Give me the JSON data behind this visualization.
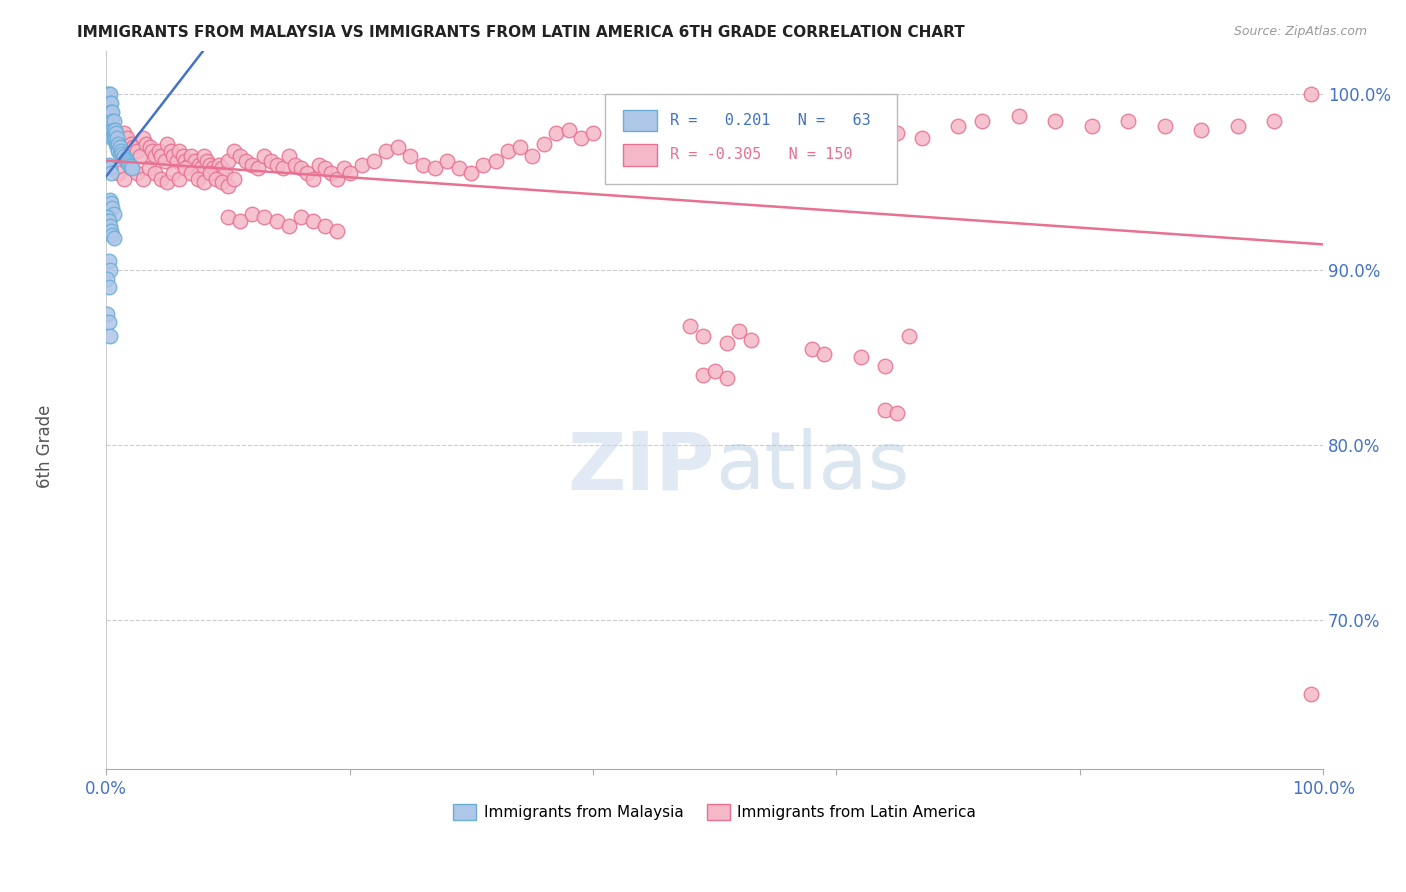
{
  "title": "IMMIGRANTS FROM MALAYSIA VS IMMIGRANTS FROM LATIN AMERICA 6TH GRADE CORRELATION CHART",
  "source": "Source: ZipAtlas.com",
  "ylabel": "6th Grade",
  "xlim": [
    0.0,
    1.0
  ],
  "ylim": [
    0.615,
    1.025
  ],
  "yticks": [
    0.7,
    0.8,
    0.9,
    1.0
  ],
  "ytick_labels": [
    "70.0%",
    "80.0%",
    "90.0%",
    "100.0%"
  ],
  "malaysia_color": "#aec6e8",
  "malaysia_edge": "#6aaed6",
  "latin_color": "#f4b8c8",
  "latin_edge": "#e87090",
  "trendline_malaysia": "#4472c4",
  "trendline_latin": "#e87090",
  "malaysia_x": [
    0.001,
    0.001,
    0.001,
    0.002,
    0.002,
    0.002,
    0.002,
    0.003,
    0.003,
    0.003,
    0.003,
    0.003,
    0.004,
    0.004,
    0.004,
    0.004,
    0.005,
    0.005,
    0.005,
    0.005,
    0.006,
    0.006,
    0.006,
    0.007,
    0.007,
    0.008,
    0.008,
    0.009,
    0.009,
    0.01,
    0.01,
    0.011,
    0.011,
    0.012,
    0.013,
    0.014,
    0.015,
    0.016,
    0.017,
    0.018,
    0.019,
    0.02,
    0.021,
    0.002,
    0.003,
    0.004,
    0.003,
    0.004,
    0.005,
    0.006,
    0.001,
    0.002,
    0.003,
    0.004,
    0.005,
    0.006,
    0.002,
    0.003,
    0.001,
    0.002,
    0.001,
    0.002,
    0.003
  ],
  "malaysia_y": [
    1.0,
    0.99,
    0.98,
    1.0,
    0.995,
    0.99,
    0.985,
    1.0,
    0.995,
    0.99,
    0.985,
    0.98,
    0.995,
    0.99,
    0.985,
    0.98,
    0.99,
    0.985,
    0.98,
    0.975,
    0.985,
    0.98,
    0.975,
    0.98,
    0.975,
    0.978,
    0.972,
    0.975,
    0.97,
    0.972,
    0.968,
    0.97,
    0.966,
    0.968,
    0.966,
    0.964,
    0.965,
    0.963,
    0.962,
    0.961,
    0.96,
    0.959,
    0.958,
    0.96,
    0.958,
    0.955,
    0.94,
    0.938,
    0.935,
    0.932,
    0.93,
    0.928,
    0.925,
    0.922,
    0.92,
    0.918,
    0.905,
    0.9,
    0.895,
    0.89,
    0.875,
    0.87,
    0.862
  ],
  "latin_x": [
    0.003,
    0.005,
    0.008,
    0.01,
    0.012,
    0.015,
    0.017,
    0.02,
    0.022,
    0.025,
    0.028,
    0.03,
    0.033,
    0.036,
    0.038,
    0.04,
    0.043,
    0.045,
    0.048,
    0.05,
    0.053,
    0.055,
    0.058,
    0.06,
    0.063,
    0.065,
    0.068,
    0.07,
    0.073,
    0.076,
    0.078,
    0.08,
    0.083,
    0.085,
    0.088,
    0.09,
    0.093,
    0.095,
    0.098,
    0.1,
    0.105,
    0.11,
    0.115,
    0.12,
    0.125,
    0.13,
    0.135,
    0.14,
    0.145,
    0.15,
    0.155,
    0.16,
    0.165,
    0.17,
    0.175,
    0.18,
    0.185,
    0.19,
    0.195,
    0.2,
    0.21,
    0.22,
    0.23,
    0.24,
    0.25,
    0.26,
    0.27,
    0.28,
    0.29,
    0.3,
    0.31,
    0.32,
    0.33,
    0.34,
    0.35,
    0.36,
    0.37,
    0.38,
    0.39,
    0.4,
    0.42,
    0.44,
    0.46,
    0.48,
    0.5,
    0.52,
    0.54,
    0.56,
    0.58,
    0.6,
    0.63,
    0.65,
    0.67,
    0.7,
    0.72,
    0.75,
    0.78,
    0.81,
    0.84,
    0.87,
    0.9,
    0.93,
    0.96,
    0.99,
    0.01,
    0.015,
    0.02,
    0.025,
    0.03,
    0.035,
    0.04,
    0.045,
    0.05,
    0.055,
    0.06,
    0.065,
    0.07,
    0.075,
    0.08,
    0.085,
    0.09,
    0.095,
    0.1,
    0.105,
    0.1,
    0.11,
    0.12,
    0.13,
    0.14,
    0.15,
    0.16,
    0.17,
    0.18,
    0.19,
    0.48,
    0.49,
    0.51,
    0.52,
    0.53,
    0.58,
    0.59,
    0.62,
    0.64,
    0.66,
    0.49,
    0.5,
    0.51,
    0.64,
    0.65,
    0.99
  ],
  "latin_y": [
    0.98,
    0.978,
    0.975,
    0.972,
    0.97,
    0.978,
    0.975,
    0.972,
    0.97,
    0.968,
    0.965,
    0.975,
    0.972,
    0.97,
    0.968,
    0.965,
    0.968,
    0.965,
    0.962,
    0.972,
    0.968,
    0.965,
    0.962,
    0.968,
    0.965,
    0.962,
    0.96,
    0.965,
    0.962,
    0.96,
    0.958,
    0.965,
    0.962,
    0.96,
    0.958,
    0.955,
    0.96,
    0.958,
    0.955,
    0.962,
    0.968,
    0.965,
    0.962,
    0.96,
    0.958,
    0.965,
    0.962,
    0.96,
    0.958,
    0.965,
    0.96,
    0.958,
    0.955,
    0.952,
    0.96,
    0.958,
    0.955,
    0.952,
    0.958,
    0.955,
    0.96,
    0.962,
    0.968,
    0.97,
    0.965,
    0.96,
    0.958,
    0.962,
    0.958,
    0.955,
    0.96,
    0.962,
    0.968,
    0.97,
    0.965,
    0.972,
    0.978,
    0.98,
    0.975,
    0.978,
    0.985,
    0.98,
    0.975,
    0.978,
    0.982,
    0.978,
    0.975,
    0.98,
    0.975,
    0.982,
    0.98,
    0.978,
    0.975,
    0.982,
    0.985,
    0.988,
    0.985,
    0.982,
    0.985,
    0.982,
    0.98,
    0.982,
    0.985,
    1.0,
    0.955,
    0.952,
    0.958,
    0.955,
    0.952,
    0.958,
    0.955,
    0.952,
    0.95,
    0.955,
    0.952,
    0.958,
    0.955,
    0.952,
    0.95,
    0.955,
    0.952,
    0.95,
    0.948,
    0.952,
    0.93,
    0.928,
    0.932,
    0.93,
    0.928,
    0.925,
    0.93,
    0.928,
    0.925,
    0.922,
    0.868,
    0.862,
    0.858,
    0.865,
    0.86,
    0.855,
    0.852,
    0.85,
    0.845,
    0.862,
    0.84,
    0.842,
    0.838,
    0.82,
    0.818,
    0.658
  ]
}
